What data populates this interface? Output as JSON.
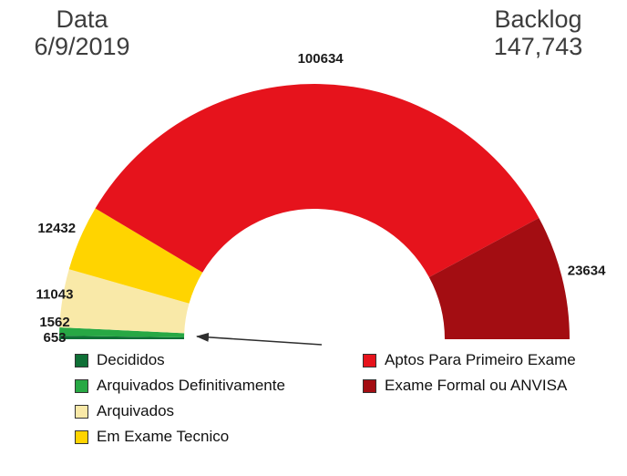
{
  "header": {
    "date_label": "Data",
    "date_value": "6/9/2019",
    "backlog_label": "Backlog",
    "backlog_value": "147,743"
  },
  "chart_data": {
    "type": "pie",
    "variant": "half-donut-gauge",
    "start_angle_deg": 180,
    "end_angle_deg": 0,
    "inner_radius_ratio": 0.51,
    "legend_position": "bottom",
    "segments": [
      {
        "label": "Decididos",
        "value": 653,
        "color": "#0f7036"
      },
      {
        "label": "Arquivados Definitivamente",
        "value": 1562,
        "color": "#27a844"
      },
      {
        "label": "Arquivados",
        "value": 11043,
        "color": "#f9e9a8"
      },
      {
        "label": "Em Exame Tecnico",
        "value": 12432,
        "color": "#ffd400"
      },
      {
        "label": "Aptos Para Primeiro Exame",
        "value": 100634,
        "color": "#e6131c"
      },
      {
        "label": "Exame Formal ou ANVISA",
        "value": 23634,
        "color": "#a30d12"
      }
    ],
    "annotations": [
      {
        "type": "arrow",
        "target": "smallest-slices"
      }
    ]
  }
}
